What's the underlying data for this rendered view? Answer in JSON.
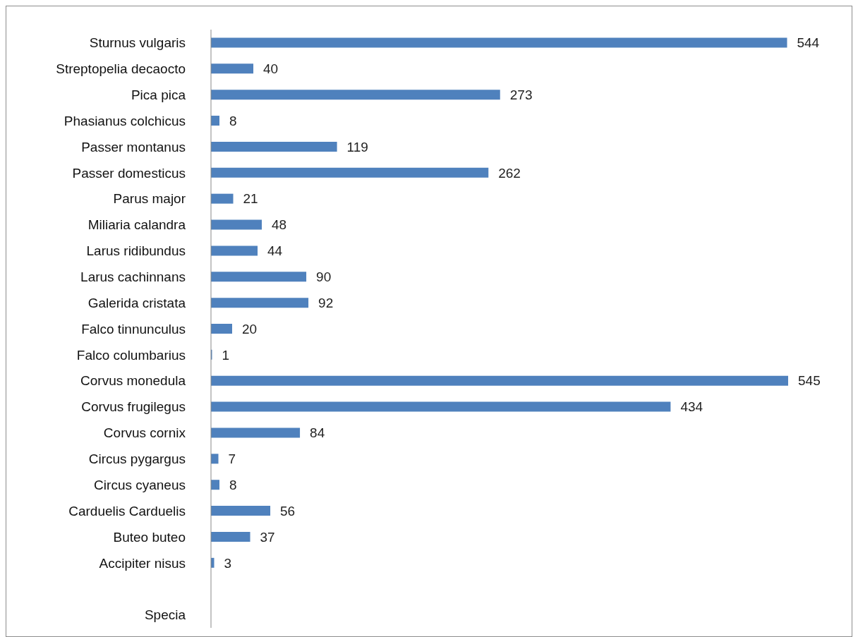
{
  "chart_data": {
    "type": "bar",
    "orientation": "horizontal",
    "categories": [
      "Sturnus vulgaris",
      "Streptopelia decaocto",
      "Pica pica",
      "Phasianus colchicus",
      "Passer montanus",
      "Passer domesticus",
      "Parus major",
      "Miliaria calandra",
      "Larus ridibundus",
      "Larus cachinnans",
      "Galerida cristata",
      "Falco tinnunculus",
      "Falco columbarius",
      "Corvus monedula",
      "Corvus frugilegus",
      "Corvus cornix",
      "Circus pygargus",
      "Circus cyaneus",
      "Carduelis Carduelis",
      "Buteo buteo",
      "Accipiter nisus",
      null,
      "Specia"
    ],
    "values": [
      544,
      40,
      273,
      8,
      119,
      262,
      21,
      48,
      44,
      90,
      92,
      20,
      1,
      545,
      434,
      84,
      7,
      8,
      56,
      37,
      3,
      null,
      null
    ],
    "color": "#4f81bd",
    "tick_labels": "y",
    "data_labels": true
  }
}
